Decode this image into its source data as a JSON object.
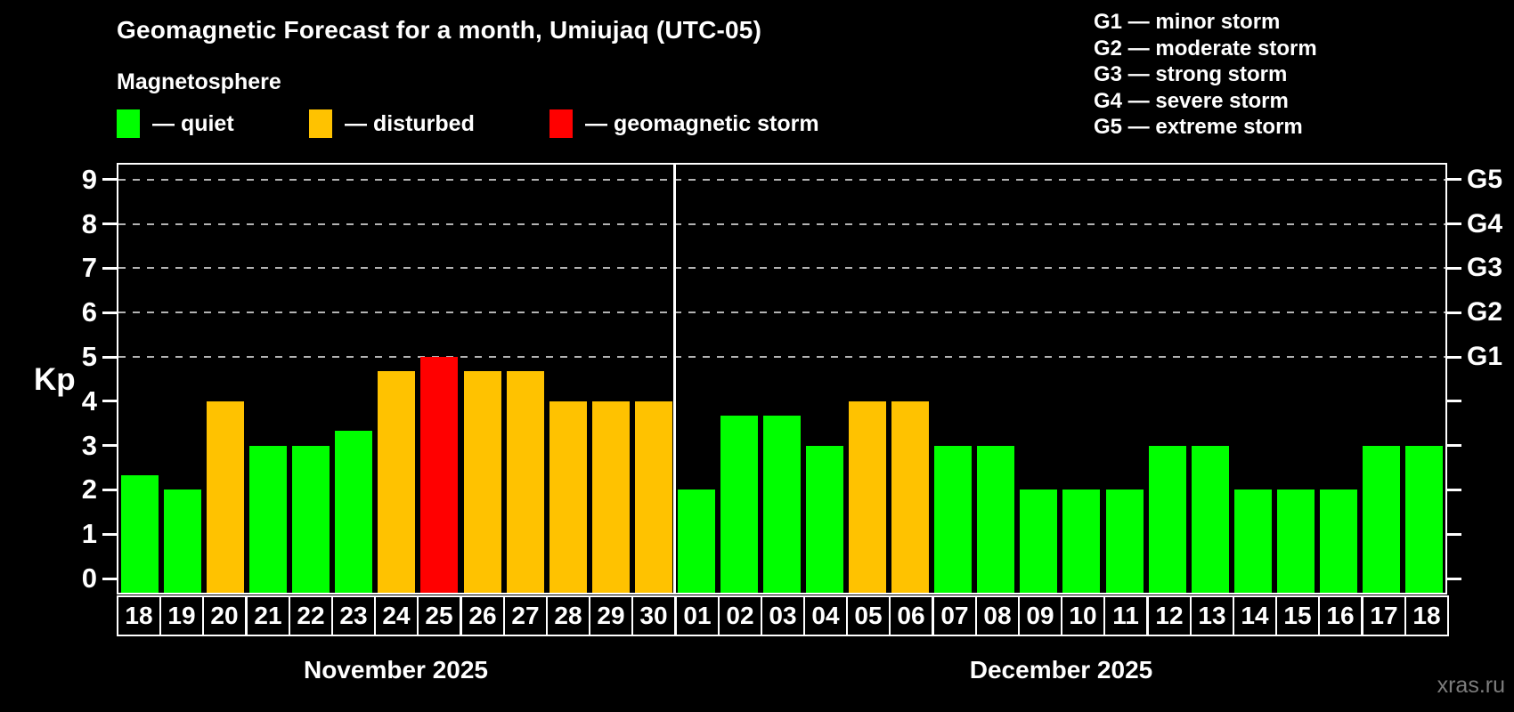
{
  "header": {
    "title": "Geomagnetic Forecast for a month, Umiujaq (UTC-05)",
    "subtitle": "Magnetosphere",
    "legend": [
      {
        "name": "quiet",
        "label": "— quiet",
        "color": "#00ff00"
      },
      {
        "name": "disturbed",
        "label": "— disturbed",
        "color": "#ffc200"
      },
      {
        "name": "storm",
        "label": "— geomagnetic storm",
        "color": "#ff0000"
      }
    ],
    "g_scale_legend": [
      "G1 — minor storm",
      "G2 — moderate storm",
      "G3 — strong storm",
      "G4 — severe storm",
      "G5 — extreme storm"
    ]
  },
  "chart_data": {
    "type": "bar",
    "title": "Geomagnetic Forecast for a month, Umiujaq (UTC-05)",
    "ylabel": "Kp",
    "ylim": [
      0,
      9
    ],
    "yticks": [
      0,
      1,
      2,
      3,
      4,
      5,
      6,
      7,
      8,
      9
    ],
    "gridlines_at": [
      5,
      6,
      7,
      8,
      9
    ],
    "grid": "dashed, horizontal, only at Kp 5-9",
    "legend_position": "top",
    "right_axis_labels": [
      {
        "kp": 5,
        "label": "G1"
      },
      {
        "kp": 6,
        "label": "G2"
      },
      {
        "kp": 7,
        "label": "G3"
      },
      {
        "kp": 8,
        "label": "G4"
      },
      {
        "kp": 9,
        "label": "G5"
      }
    ],
    "months": [
      {
        "label": "November 2025",
        "days": 13
      },
      {
        "label": "December 2025",
        "days": 18
      }
    ],
    "categories": [
      "18",
      "19",
      "20",
      "21",
      "22",
      "23",
      "24",
      "25",
      "26",
      "27",
      "28",
      "29",
      "30",
      "01",
      "02",
      "03",
      "04",
      "05",
      "06",
      "07",
      "08",
      "09",
      "10",
      "11",
      "12",
      "13",
      "14",
      "15",
      "16",
      "17",
      "18"
    ],
    "values": [
      2.33,
      2,
      4,
      3,
      3,
      3.33,
      4.67,
      5,
      4.67,
      4.67,
      4,
      4,
      4,
      2,
      3.67,
      3.67,
      3,
      4,
      4,
      3,
      3,
      2,
      2,
      2,
      3,
      3,
      2,
      2,
      2,
      3,
      3
    ],
    "statuses": [
      "quiet",
      "quiet",
      "disturbed",
      "quiet",
      "quiet",
      "quiet",
      "disturbed",
      "storm",
      "disturbed",
      "disturbed",
      "disturbed",
      "disturbed",
      "disturbed",
      "quiet",
      "quiet",
      "quiet",
      "quiet",
      "disturbed",
      "disturbed",
      "quiet",
      "quiet",
      "quiet",
      "quiet",
      "quiet",
      "quiet",
      "quiet",
      "quiet",
      "quiet",
      "quiet",
      "quiet",
      "quiet"
    ],
    "colors": {
      "quiet": "#00ff00",
      "disturbed": "#ffc200",
      "storm": "#ff0000"
    }
  },
  "watermark": "xras.ru"
}
